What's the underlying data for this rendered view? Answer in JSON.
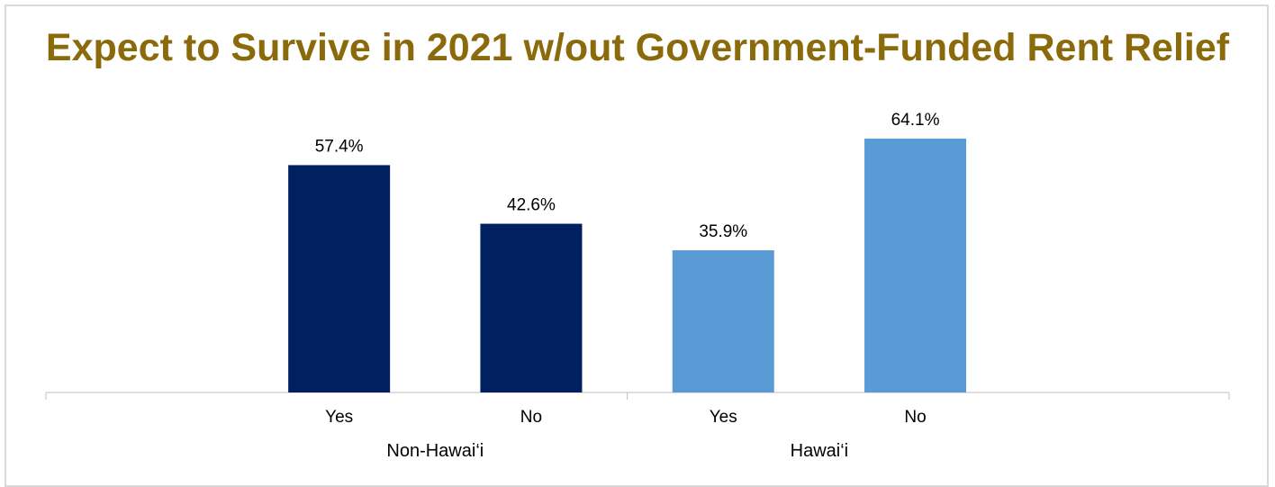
{
  "chart_data": {
    "type": "bar",
    "title": "Expect to Survive in 2021 w/out Government-Funded Rent Relief",
    "groups": [
      {
        "name": "Non-Hawai‘i",
        "color": "#002060",
        "bars": [
          {
            "category": "Yes",
            "value": 57.4,
            "label": "57.4%"
          },
          {
            "category": "No",
            "value": 42.6,
            "label": "42.6%"
          }
        ]
      },
      {
        "name": "Hawai‘i",
        "color": "#5b9bd5",
        "bars": [
          {
            "category": "Yes",
            "value": 35.9,
            "label": "35.9%"
          },
          {
            "category": "No",
            "value": 64.1,
            "label": "64.1%"
          }
        ]
      }
    ],
    "ylim": [
      0,
      70
    ],
    "grid": false,
    "legend": "none",
    "xlabel": "",
    "ylabel": ""
  }
}
